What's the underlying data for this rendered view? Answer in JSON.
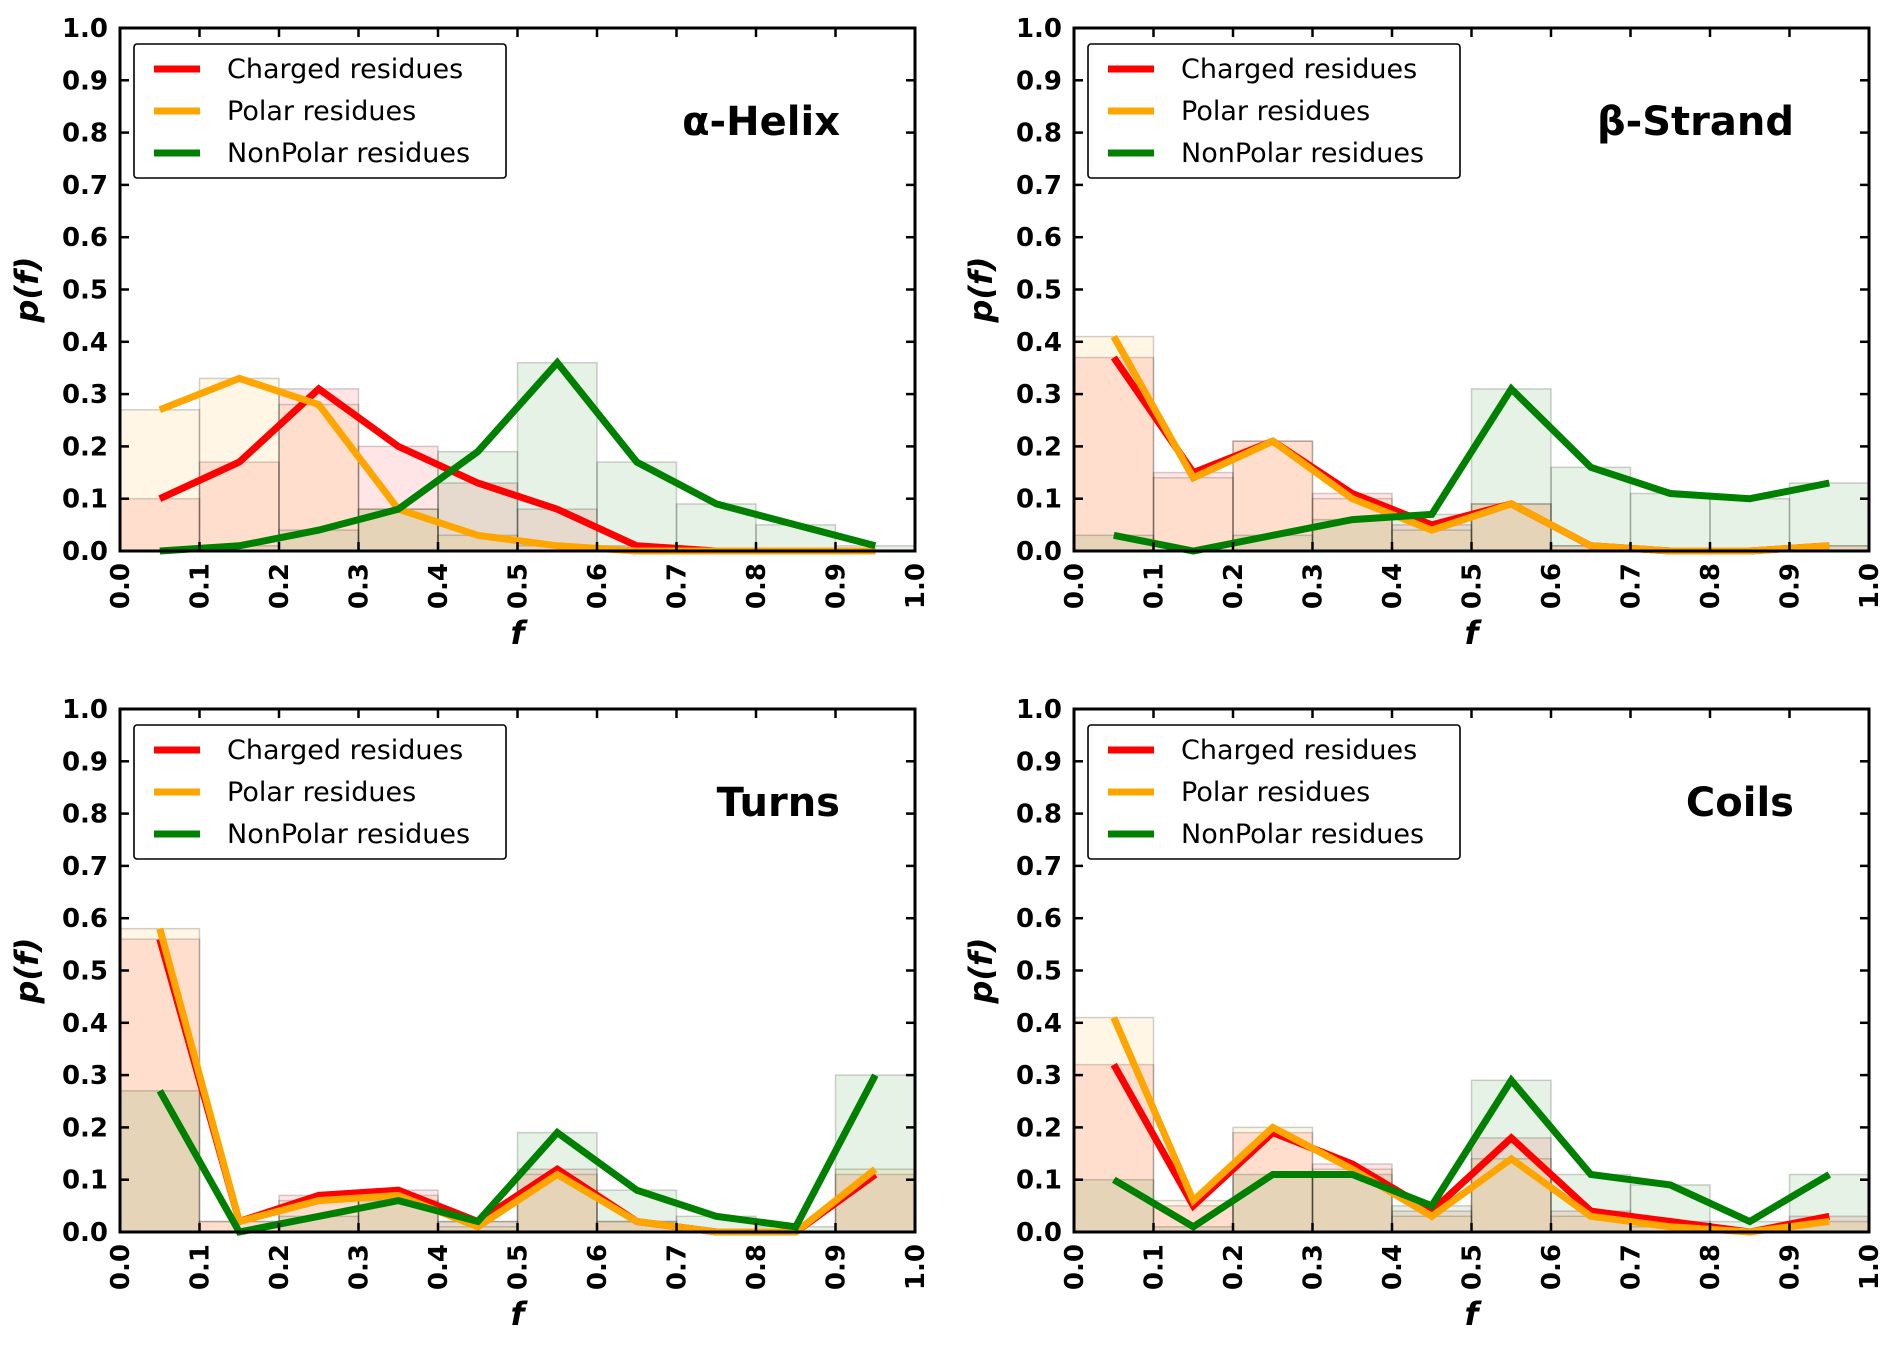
{
  "colors": {
    "charged": "#ff0000",
    "polar": "#ffa500",
    "nonpolar": "#008000"
  },
  "legend_labels": [
    "Charged residues",
    "Polar residues",
    "NonPolar residues"
  ],
  "chart_data": [
    {
      "type": "line",
      "title": "α-Helix",
      "xlabel": "f",
      "ylabel": "p(f)",
      "xlim": [
        0.0,
        1.0
      ],
      "ylim": [
        0.0,
        1.0
      ],
      "grid": false,
      "legend": "upper-left",
      "x": [
        0.05,
        0.15,
        0.25,
        0.35,
        0.45,
        0.55,
        0.65,
        0.75,
        0.85,
        0.95
      ],
      "x_ticks": [
        "0.0",
        "0.1",
        "0.2",
        "0.3",
        "0.4",
        "0.5",
        "0.6",
        "0.7",
        "0.8",
        "0.9",
        "1.0"
      ],
      "y_ticks": [
        "0.0",
        "0.1",
        "0.2",
        "0.3",
        "0.4",
        "0.5",
        "0.6",
        "0.7",
        "0.8",
        "0.9",
        "1.0"
      ],
      "series": [
        {
          "name": "Charged residues",
          "values": [
            0.1,
            0.17,
            0.31,
            0.2,
            0.13,
            0.08,
            0.01,
            0.0,
            0.0,
            0.0
          ]
        },
        {
          "name": "Polar residues",
          "values": [
            0.27,
            0.33,
            0.28,
            0.08,
            0.03,
            0.01,
            0.0,
            0.0,
            0.0,
            0.0
          ]
        },
        {
          "name": "NonPolar residues",
          "values": [
            0.0,
            0.01,
            0.04,
            0.08,
            0.19,
            0.36,
            0.17,
            0.09,
            0.05,
            0.01
          ]
        }
      ]
    },
    {
      "type": "line",
      "title": "β-Strand",
      "xlabel": "f",
      "ylabel": "p(f)",
      "xlim": [
        0.0,
        1.0
      ],
      "ylim": [
        0.0,
        1.0
      ],
      "grid": false,
      "legend": "upper-left",
      "x": [
        0.05,
        0.15,
        0.25,
        0.35,
        0.45,
        0.55,
        0.65,
        0.75,
        0.85,
        0.95
      ],
      "x_ticks": [
        "0.0",
        "0.1",
        "0.2",
        "0.3",
        "0.4",
        "0.5",
        "0.6",
        "0.7",
        "0.8",
        "0.9",
        "1.0"
      ],
      "y_ticks": [
        "0.0",
        "0.1",
        "0.2",
        "0.3",
        "0.4",
        "0.5",
        "0.6",
        "0.7",
        "0.8",
        "0.9",
        "1.0"
      ],
      "series": [
        {
          "name": "Charged residues",
          "values": [
            0.37,
            0.15,
            0.21,
            0.11,
            0.05,
            0.09,
            0.01,
            0.0,
            0.0,
            0.01
          ]
        },
        {
          "name": "Polar residues",
          "values": [
            0.41,
            0.14,
            0.21,
            0.1,
            0.04,
            0.09,
            0.01,
            0.0,
            0.0,
            0.01
          ]
        },
        {
          "name": "NonPolar residues",
          "values": [
            0.03,
            0.0,
            0.03,
            0.06,
            0.07,
            0.31,
            0.16,
            0.11,
            0.1,
            0.13
          ]
        }
      ]
    },
    {
      "type": "line",
      "title": "Turns",
      "xlabel": "f",
      "ylabel": "p(f)",
      "xlim": [
        0.0,
        1.0
      ],
      "ylim": [
        0.0,
        1.0
      ],
      "grid": false,
      "legend": "upper-left",
      "x": [
        0.05,
        0.15,
        0.25,
        0.35,
        0.45,
        0.55,
        0.65,
        0.75,
        0.85,
        0.95
      ],
      "x_ticks": [
        "0.0",
        "0.1",
        "0.2",
        "0.3",
        "0.4",
        "0.5",
        "0.6",
        "0.7",
        "0.8",
        "0.9",
        "1.0"
      ],
      "y_ticks": [
        "0.0",
        "0.1",
        "0.2",
        "0.3",
        "0.4",
        "0.5",
        "0.6",
        "0.7",
        "0.8",
        "0.9",
        "1.0"
      ],
      "series": [
        {
          "name": "Charged residues",
          "values": [
            0.56,
            0.02,
            0.07,
            0.08,
            0.02,
            0.12,
            0.02,
            0.0,
            0.0,
            0.11
          ]
        },
        {
          "name": "Polar residues",
          "values": [
            0.58,
            0.02,
            0.06,
            0.07,
            0.01,
            0.11,
            0.02,
            0.0,
            0.0,
            0.12
          ]
        },
        {
          "name": "NonPolar residues",
          "values": [
            0.27,
            0.0,
            0.03,
            0.06,
            0.02,
            0.19,
            0.08,
            0.03,
            0.01,
            0.3
          ]
        }
      ]
    },
    {
      "type": "line",
      "title": "Coils",
      "xlabel": "f",
      "ylabel": "p(f)",
      "xlim": [
        0.0,
        1.0
      ],
      "ylim": [
        0.0,
        1.0
      ],
      "grid": false,
      "legend": "upper-left",
      "x": [
        0.05,
        0.15,
        0.25,
        0.35,
        0.45,
        0.55,
        0.65,
        0.75,
        0.85,
        0.95
      ],
      "x_ticks": [
        "0.0",
        "0.1",
        "0.2",
        "0.3",
        "0.4",
        "0.5",
        "0.6",
        "0.7",
        "0.8",
        "0.9",
        "1.0"
      ],
      "y_ticks": [
        "0.0",
        "0.1",
        "0.2",
        "0.3",
        "0.4",
        "0.5",
        "0.6",
        "0.7",
        "0.8",
        "0.9",
        "1.0"
      ],
      "series": [
        {
          "name": "Charged residues",
          "values": [
            0.32,
            0.05,
            0.19,
            0.13,
            0.04,
            0.18,
            0.04,
            0.02,
            0.0,
            0.03
          ]
        },
        {
          "name": "Polar residues",
          "values": [
            0.41,
            0.06,
            0.2,
            0.12,
            0.03,
            0.14,
            0.03,
            0.01,
            0.0,
            0.02
          ]
        },
        {
          "name": "NonPolar residues",
          "values": [
            0.1,
            0.01,
            0.11,
            0.11,
            0.05,
            0.29,
            0.11,
            0.09,
            0.02,
            0.11
          ]
        }
      ]
    }
  ]
}
